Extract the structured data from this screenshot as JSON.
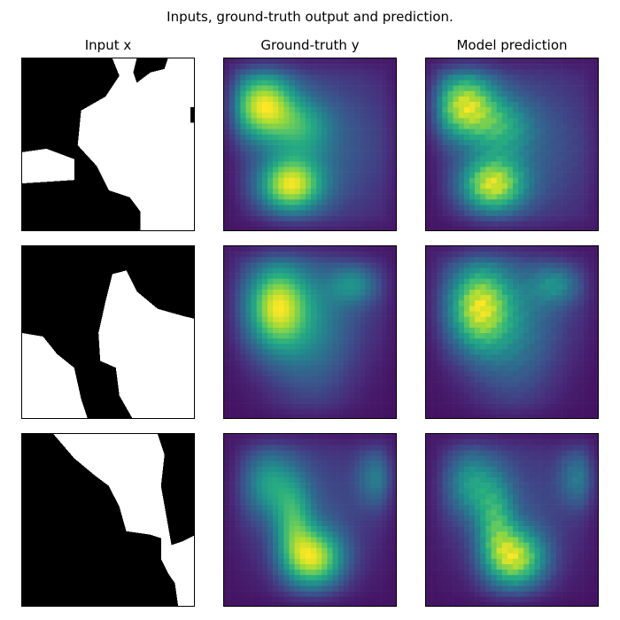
{
  "chart_data": {
    "type": "heatmap",
    "title": "Inputs, ground-truth output and prediction.",
    "columns": [
      "Input x",
      "Ground-truth y",
      "Model prediction"
    ],
    "grid_size": 32,
    "input_colormap": "binary (black/white)",
    "output_colormap": "viridis",
    "axes_ticks": "off",
    "rows": [
      {
        "blobs": [
          {
            "cx": 0.22,
            "cy": 0.27,
            "sx": 0.13,
            "sy": 0.14,
            "w": 1.0
          },
          {
            "cx": 0.38,
            "cy": 0.73,
            "sx": 0.13,
            "sy": 0.11,
            "w": 0.95
          },
          {
            "cx": 0.45,
            "cy": 0.4,
            "sx": 0.12,
            "sy": 0.12,
            "w": 0.4
          },
          {
            "cx": 0.6,
            "cy": 0.5,
            "sx": 0.3,
            "sy": 0.35,
            "w": 0.28
          }
        ],
        "input_polygons": [
          [
            [
              0,
              0
            ],
            [
              0.52,
              0
            ],
            [
              0.56,
              0.1
            ],
            [
              0.48,
              0.22
            ],
            [
              0.34,
              0.3
            ],
            [
              0.32,
              0.5
            ],
            [
              0.43,
              0.62
            ],
            [
              0.5,
              0.76
            ],
            [
              0.62,
              0.8
            ],
            [
              0.68,
              0.88
            ],
            [
              0.68,
              1
            ],
            [
              0,
              1
            ]
          ],
          [
            [
              0.66,
              0
            ],
            [
              0.84,
              0
            ],
            [
              0.82,
              0.06
            ],
            [
              0.74,
              0.08
            ],
            [
              0.66,
              0.14
            ],
            [
              0.64,
              0.08
            ]
          ],
          [
            [
              0.97,
              0.28
            ],
            [
              1,
              0.28
            ],
            [
              1,
              0.37
            ],
            [
              0.97,
              0.37
            ]
          ]
        ],
        "input_white_polygons": [
          [
            [
              0,
              0.54
            ],
            [
              0.14,
              0.52
            ],
            [
              0.3,
              0.58
            ],
            [
              0.3,
              0.7
            ],
            [
              0,
              0.72
            ]
          ]
        ]
      },
      {
        "blobs": [
          {
            "cx": 0.3,
            "cy": 0.35,
            "sx": 0.12,
            "sy": 0.17,
            "w": 1.0
          },
          {
            "cx": 0.75,
            "cy": 0.22,
            "sx": 0.1,
            "sy": 0.08,
            "w": 0.45
          },
          {
            "cx": 0.5,
            "cy": 0.55,
            "sx": 0.18,
            "sy": 0.28,
            "w": 0.4
          },
          {
            "cx": 0.45,
            "cy": 0.3,
            "sx": 0.35,
            "sy": 0.25,
            "w": 0.25
          }
        ],
        "input_polygons": [
          [
            [
              0,
              0
            ],
            [
              1,
              0
            ],
            [
              1,
              0.42
            ],
            [
              0.92,
              0.4
            ],
            [
              0.78,
              0.36
            ],
            [
              0.66,
              0.26
            ],
            [
              0.6,
              0.14
            ],
            [
              0.52,
              0.16
            ],
            [
              0.48,
              0.32
            ],
            [
              0.44,
              0.5
            ],
            [
              0.45,
              0.66
            ],
            [
              0.54,
              0.7
            ],
            [
              0.56,
              0.86
            ],
            [
              0.64,
              1
            ],
            [
              0.38,
              1
            ],
            [
              0.34,
              0.88
            ],
            [
              0.3,
              0.7
            ],
            [
              0.2,
              0.62
            ],
            [
              0.12,
              0.52
            ],
            [
              0,
              0.5
            ]
          ]
        ],
        "input_white_polygons": []
      },
      {
        "blobs": [
          {
            "cx": 0.52,
            "cy": 0.72,
            "sx": 0.12,
            "sy": 0.12,
            "w": 1.0
          },
          {
            "cx": 0.25,
            "cy": 0.28,
            "sx": 0.1,
            "sy": 0.14,
            "w": 0.5
          },
          {
            "cx": 0.4,
            "cy": 0.5,
            "sx": 0.08,
            "sy": 0.18,
            "w": 0.55
          },
          {
            "cx": 0.88,
            "cy": 0.25,
            "sx": 0.08,
            "sy": 0.12,
            "w": 0.4
          },
          {
            "cx": 0.5,
            "cy": 0.4,
            "sx": 0.3,
            "sy": 0.3,
            "w": 0.25
          }
        ],
        "input_polygons": [
          [
            [
              0,
              0
            ],
            [
              0.18,
              0
            ],
            [
              0.3,
              0.14
            ],
            [
              0.42,
              0.24
            ],
            [
              0.5,
              0.3
            ],
            [
              0.56,
              0.42
            ],
            [
              0.6,
              0.56
            ],
            [
              0.74,
              0.58
            ],
            [
              0.8,
              0.6
            ],
            [
              0.8,
              0.72
            ],
            [
              0.84,
              0.8
            ],
            [
              0.88,
              0.86
            ],
            [
              0.9,
              1
            ],
            [
              0,
              1
            ],
            [
              0,
              0.52
            ],
            [
              0.12,
              0.44
            ],
            [
              0.2,
              0.46
            ],
            [
              0.26,
              0.6
            ],
            [
              0.2,
              0.78
            ],
            [
              0.14,
              0.86
            ],
            [
              0,
              0.9
            ]
          ],
          [
            [
              0.78,
              0
            ],
            [
              1,
              0
            ],
            [
              1,
              0.58
            ],
            [
              0.92,
              0.62
            ],
            [
              0.86,
              0.64
            ],
            [
              0.8,
              0.3
            ],
            [
              0.82,
              0.12
            ]
          ]
        ],
        "input_white_polygons": []
      }
    ]
  }
}
